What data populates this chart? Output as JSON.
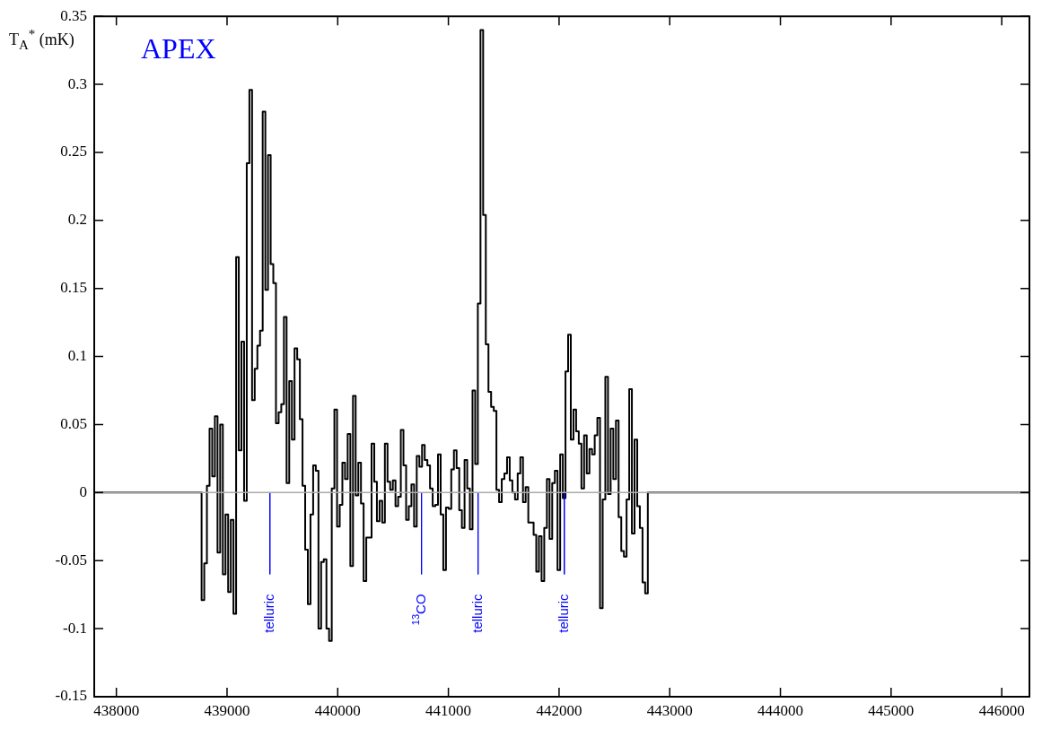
{
  "chart_data": {
    "type": "step",
    "title": "APEX",
    "ylabel": "T$_{A}$$^{*}$ (mK)",
    "xlim": [
      437800,
      446250
    ],
    "ylim": [
      -0.15,
      0.35
    ],
    "xticks": [
      438000,
      439000,
      440000,
      441000,
      442000,
      443000,
      444000,
      445000,
      446000
    ],
    "yticks": [
      -0.15,
      -0.1,
      -0.05,
      0,
      0.05,
      0.1,
      0.15,
      0.2,
      0.25,
      0.3,
      0.35
    ],
    "grid": false,
    "legend": false,
    "ref_lines": [
      {
        "axis": "y",
        "value": 0,
        "color": "#aaaaaa"
      }
    ],
    "annotations": [
      {
        "text": "telluric",
        "x": 439387,
        "y": -0.06
      },
      {
        "text": "$^{13}$CO",
        "x": 440757,
        "y": -0.06
      },
      {
        "text": "telluric",
        "x": 441268,
        "y": -0.06
      },
      {
        "text": "telluric",
        "x": 442047,
        "y": -0.06
      }
    ],
    "series": [
      {
        "type": "line",
        "color": "#0000ff",
        "x": [
          439387,
          439387
        ],
        "values": [
          0,
          -0.06
        ]
      },
      {
        "type": "line",
        "color": "#0000ff",
        "x": [
          440757,
          440757
        ],
        "values": [
          0,
          -0.06
        ]
      },
      {
        "type": "line",
        "color": "#0000ff",
        "x": [
          441268,
          441268
        ],
        "values": [
          0,
          -0.06
        ]
      },
      {
        "type": "line",
        "color": "#0000ff",
        "x": [
          442047,
          442047
        ],
        "values": [
          0,
          -0.06
        ]
      },
      {
        "color": "#000000",
        "x": [
          437800,
          438770,
          438794,
          438818,
          438842,
          438866,
          438890,
          438914,
          438938,
          438962,
          438986,
          439010,
          439034,
          439058,
          439082,
          439106,
          439130,
          439154,
          439178,
          439202,
          439226,
          439250,
          439274,
          439298,
          439322,
          439346,
          439370,
          439394,
          439418,
          439442,
          439466,
          439490,
          439514,
          439538,
          439562,
          439586,
          439610,
          439634,
          439658,
          439682,
          439706,
          439730,
          439754,
          439778,
          439802,
          439826,
          439850,
          439874,
          439898,
          439922,
          439946,
          439970,
          439994,
          440018,
          440042,
          440066,
          440090,
          440114,
          440138,
          440162,
          440186,
          440210,
          440234,
          440258,
          440282,
          440306,
          440330,
          440354,
          440378,
          440402,
          440426,
          440450,
          440474,
          440498,
          440522,
          440546,
          440570,
          440594,
          440618,
          440642,
          440666,
          440690,
          440714,
          440738,
          440762,
          440786,
          440810,
          440834,
          440858,
          440882,
          440906,
          440930,
          440954,
          440978,
          441002,
          441026,
          441050,
          441074,
          441098,
          441122,
          441146,
          441170,
          441194,
          441218,
          441242,
          441266,
          441290,
          441314,
          441338,
          441362,
          441386,
          441410,
          441434,
          441458,
          441482,
          441506,
          441530,
          441554,
          441578,
          441602,
          441626,
          441650,
          441674,
          441698,
          441722,
          441746,
          441770,
          441794,
          441818,
          441842,
          441866,
          441890,
          441914,
          441938,
          441962,
          441986,
          442010,
          442034,
          442058,
          442082,
          442106,
          442130,
          442154,
          442178,
          442202,
          442226,
          442250,
          442274,
          442298,
          442322,
          442346,
          442370,
          442394,
          442418,
          442442,
          442466,
          442490,
          442514,
          442538,
          442562,
          442586,
          442610,
          442634,
          442658,
          442682,
          442706,
          442730,
          442754,
          442778,
          442802,
          446250
        ],
        "values": [
          0,
          -0.079,
          -0.052,
          0.005,
          0.047,
          0.012,
          0.056,
          -0.044,
          0.05,
          -0.06,
          -0.016,
          -0.073,
          -0.02,
          -0.089,
          0.173,
          0.031,
          0.111,
          -0.006,
          0.242,
          0.296,
          0.068,
          0.091,
          0.108,
          0.119,
          0.28,
          0.149,
          0.248,
          0.168,
          0.154,
          0.051,
          0.059,
          0.065,
          0.129,
          0.007,
          0.082,
          0.039,
          0.106,
          0.098,
          0.054,
          0.005,
          -0.042,
          -0.082,
          -0.016,
          0.02,
          0.016,
          -0.1,
          -0.051,
          -0.049,
          -0.1,
          -0.109,
          0.003,
          0.061,
          -0.025,
          -0.009,
          0.022,
          0.01,
          0.043,
          -0.054,
          0.071,
          -0.002,
          0.022,
          -0.008,
          -0.065,
          -0.033,
          -0.033,
          0.036,
          0.008,
          -0.021,
          -0.006,
          -0.022,
          0.036,
          0.008,
          0.002,
          0.009,
          -0.01,
          -0.003,
          0.046,
          0.02,
          -0.02,
          -0.01,
          0.006,
          -0.025,
          0.027,
          0.019,
          0.035,
          0.024,
          0.02,
          0.003,
          -0.01,
          -0.009,
          0.028,
          -0.016,
          -0.057,
          -0.011,
          -0.012,
          0.017,
          0.031,
          0.018,
          -0.013,
          -0.026,
          0.024,
          0.003,
          -0.027,
          0.075,
          0.021,
          0.139,
          0.34,
          0.204,
          0.109,
          0.074,
          0.063,
          0.06,
          0.002,
          -0.007,
          0.01,
          0.014,
          0.026,
          0.009,
          0.0,
          -0.005,
          0.014,
          0.026,
          -0.007,
          0.004,
          -0.022,
          -0.022,
          -0.031,
          -0.058,
          -0.032,
          -0.065,
          -0.026,
          0.01,
          -0.034,
          0.007,
          0.016,
          -0.057,
          0.028,
          -0.004,
          0.089,
          0.116,
          0.039,
          0.061,
          0.045,
          0.036,
          0.003,
          0.042,
          0.014,
          0.032,
          0.028,
          0.042,
          0.055,
          -0.085,
          -0.005,
          0.085,
          -0.001,
          0.047,
          0.01,
          0.053,
          -0.018,
          -0.043,
          -0.047,
          -0.005,
          0.076,
          -0.03,
          0.039,
          -0.01,
          -0.026,
          -0.066,
          -0.074,
          0,
          0
        ]
      }
    ]
  }
}
